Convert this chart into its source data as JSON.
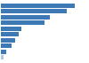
{
  "values": [
    11.5,
    10.2,
    7.6,
    6.8,
    3.1,
    2.7,
    2.2,
    1.6,
    0.85,
    0.35
  ],
  "bar_color": "#3d7ab5",
  "last_bar_color": "#b0c8e0",
  "background_color": "#ffffff",
  "xlim": [
    0,
    13.5
  ]
}
